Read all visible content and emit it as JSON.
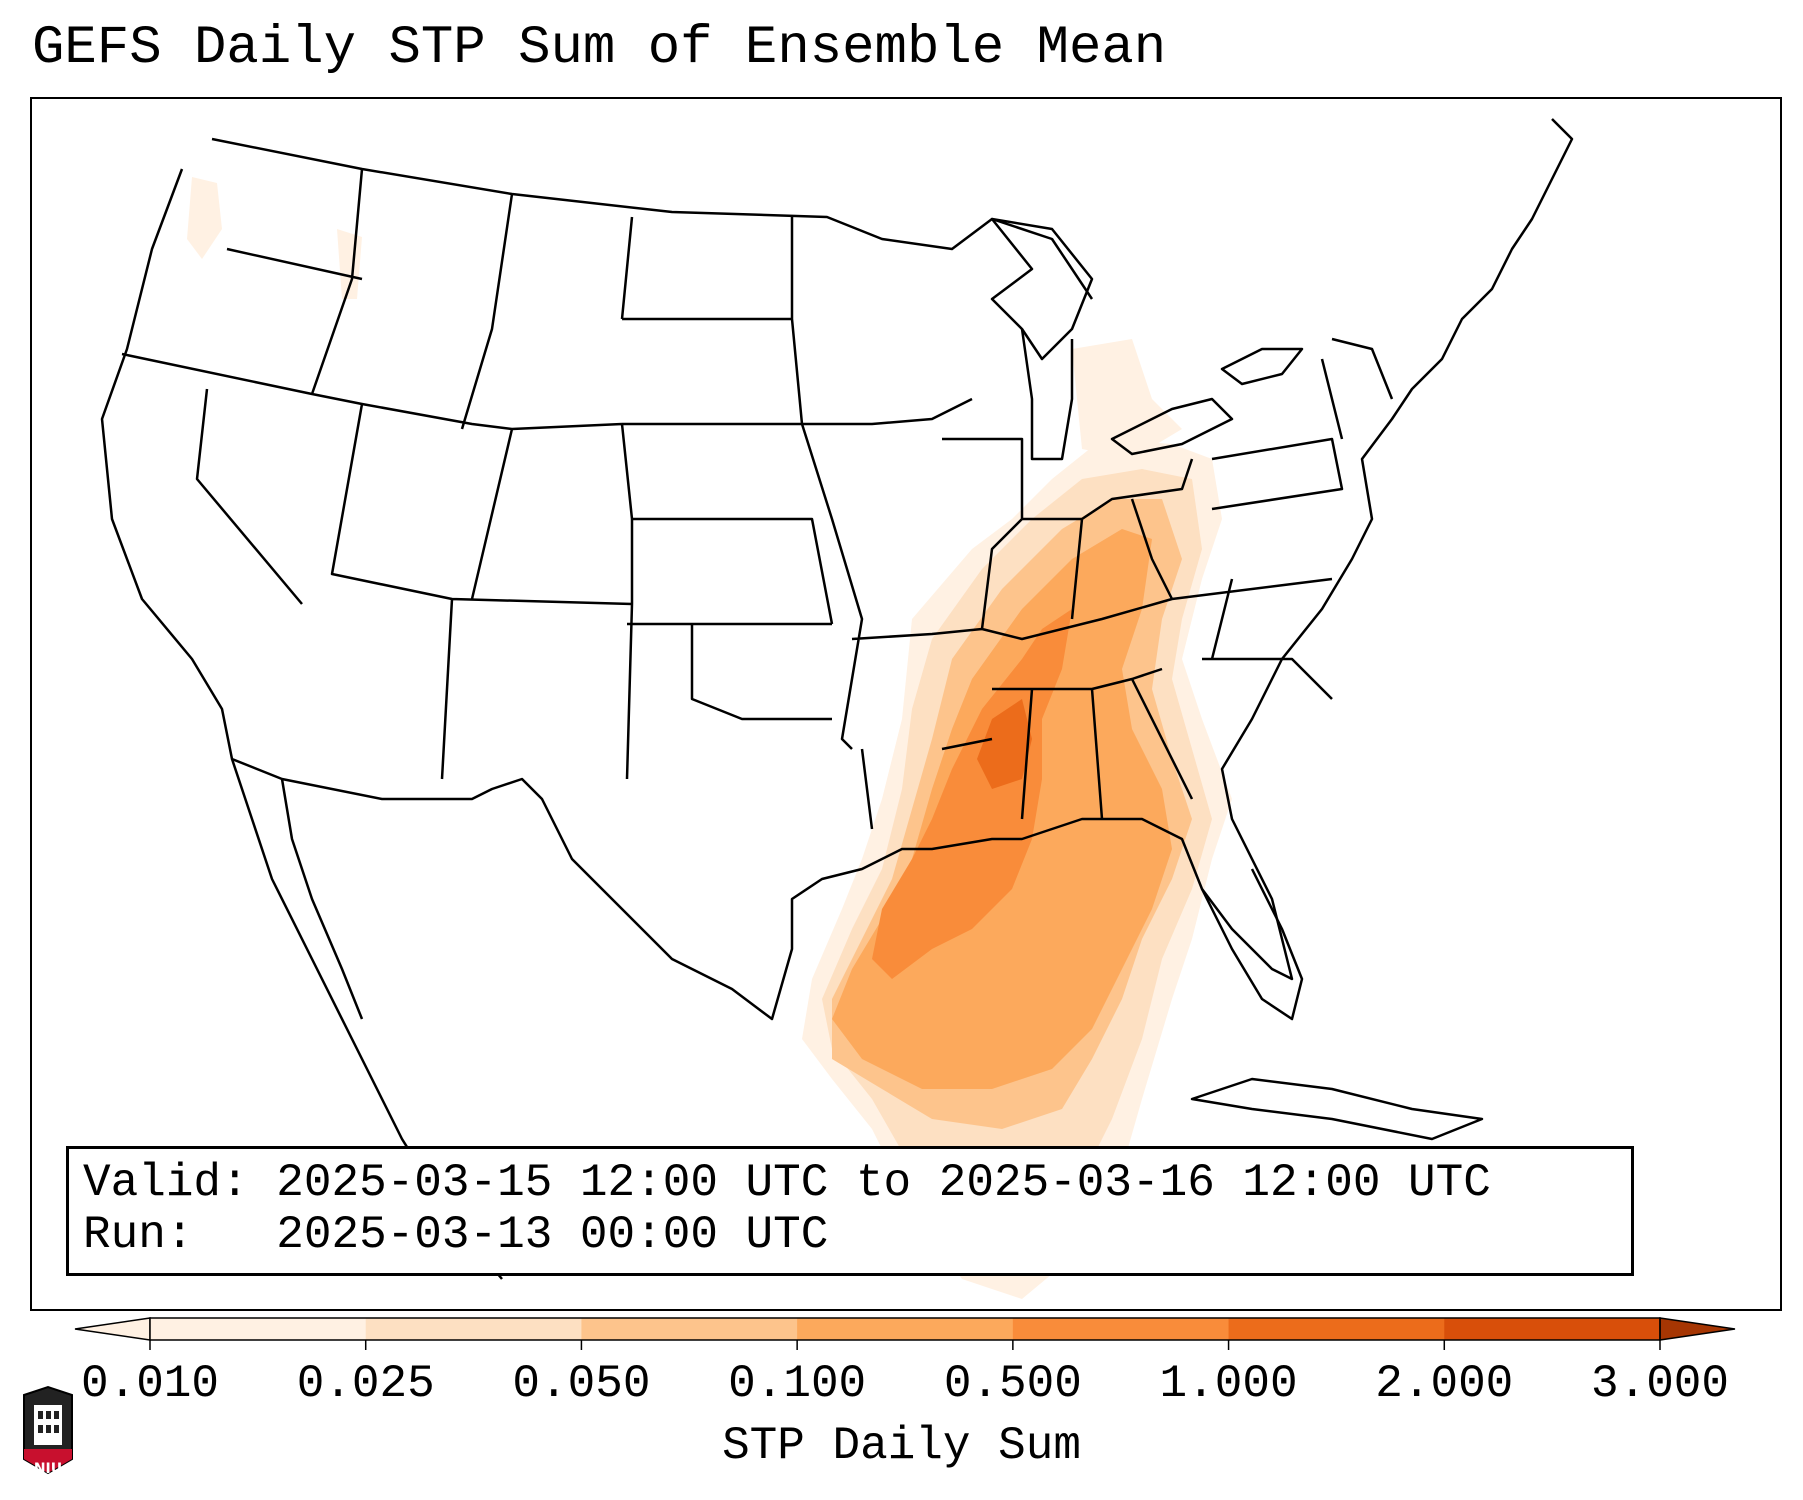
{
  "title": "GEFS Daily STP Sum of Ensemble Mean",
  "info": {
    "valid_label": "Valid:",
    "valid_value": "2025-03-15 12:00 UTC to 2025-03-16 12:00 UTC",
    "run_label": "Run:",
    "run_value": "2025-03-13 00:00 UTC"
  },
  "colorbar": {
    "label": "STP Daily Sum",
    "ticks": [
      "0.010",
      "0.025",
      "0.050",
      "0.100",
      "0.500",
      "1.000",
      "2.000",
      "3.000"
    ],
    "colors": [
      "#fff1e3",
      "#fde0c2",
      "#fdc48c",
      "#fca95c",
      "#f98c3a",
      "#ec6c1b",
      "#d84f0a",
      "#a63603"
    ],
    "extend": "both"
  },
  "logo": {
    "text": "NIU",
    "color": "#c8102e"
  },
  "map": {
    "region": "Continental United States",
    "field": "STP daily sum ensemble mean",
    "max_region": "Mississippi / Louisiana / Alabama",
    "colors": {
      "boundary": "#000000",
      "max_value_color": "#ec6c1b"
    }
  }
}
